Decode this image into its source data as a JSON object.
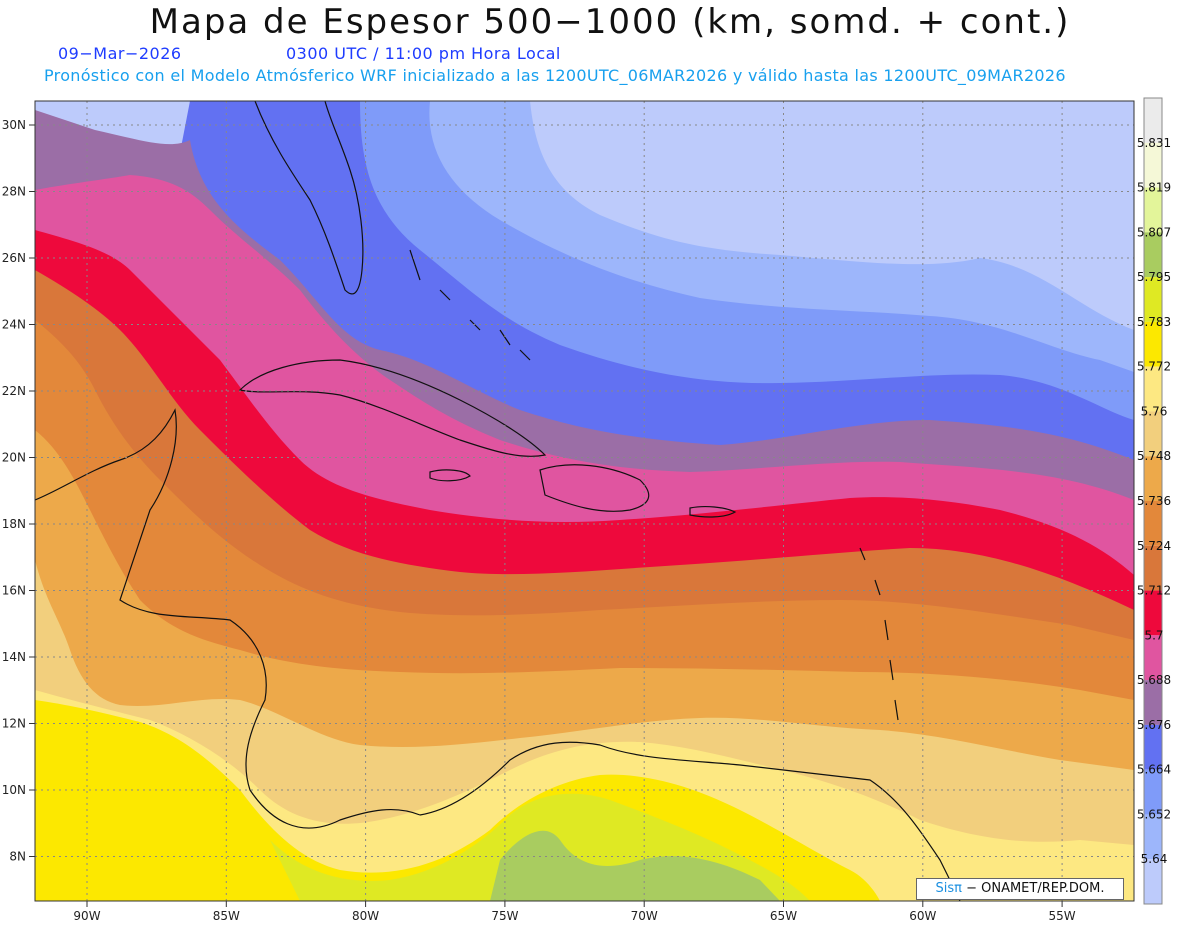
{
  "title": "Mapa de Espesor 500−1000 (km, somd. + cont.)",
  "subtitle": {
    "date": "09−Mar−2026",
    "time": "0300 UTC / 11:00 pm Hora Local",
    "forecast": "Pronóstico con el Modelo Atmósferico WRF inicializado a las 1200UTC_06MAR2026 y válido hasta las  1200UTC_09MAR2026"
  },
  "credit": {
    "brand": "Sisπ",
    "org": " − ONAMET/REP.DOM."
  },
  "axes": {
    "lat_labels": [
      "30N",
      "28N",
      "26N",
      "24N",
      "22N",
      "20N",
      "18N",
      "16N",
      "14N",
      "12N",
      "10N",
      "8N"
    ],
    "lon_labels": [
      "90W",
      "85W",
      "80W",
      "75W",
      "70W",
      "65W",
      "60W",
      "55W"
    ]
  },
  "colorbar": {
    "levels": [
      "5.831",
      "5.819",
      "5.807",
      "5.795",
      "5.783",
      "5.772",
      "5.76",
      "5.748",
      "5.736",
      "5.724",
      "5.712",
      "5.7",
      "5.688",
      "5.676",
      "5.664",
      "5.652",
      "5.64"
    ],
    "colors": [
      "#ebebeb",
      "#f5f8d7",
      "#e3f59a",
      "#a9cc60",
      "#dfe923",
      "#fce800",
      "#fde882",
      "#f2cf7d",
      "#eda94a",
      "#e3883a",
      "#d9773a",
      "#ee093c",
      "#e055a0",
      "#9b6ea6",
      "#6271f2",
      "#7f9bf9",
      "#9db6fb",
      "#bdcbfb"
    ]
  },
  "map_features": {
    "fill_colors": {
      "top_pale": "#bdcbfb",
      "light_blue": "#9db6fb",
      "mid_blue": "#7f9bf9",
      "blue": "#6271f2",
      "purple": "#9b6ea6",
      "pink": "#e055a0",
      "red": "#ee093c",
      "orange_dark": "#d9773a",
      "orange": "#e3883a",
      "orange_light": "#eda94a",
      "tan": "#f2cf7d",
      "light_yellow": "#fde882",
      "yellow": "#fce800",
      "yellow_green": "#dfe923",
      "green": "#a9cc60"
    }
  }
}
